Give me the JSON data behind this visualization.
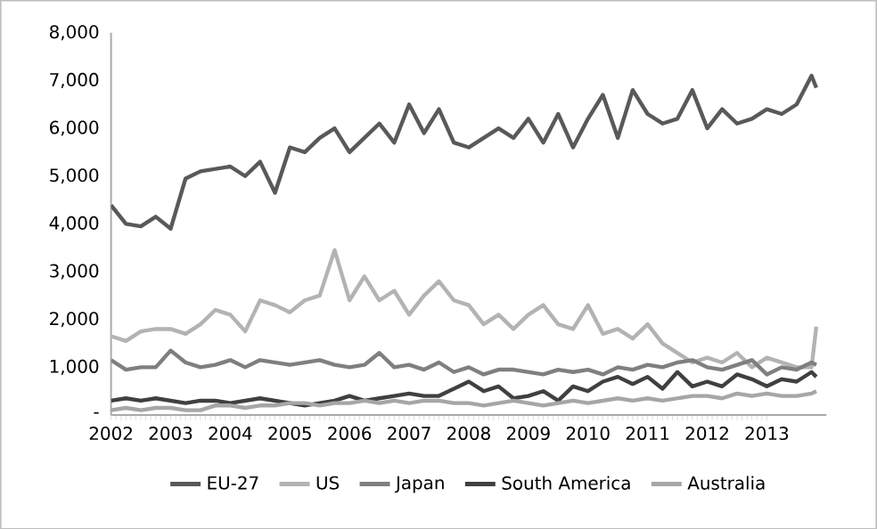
{
  "chart_data": {
    "type": "line",
    "x": [
      "2002-01",
      "2002-04",
      "2002-07",
      "2002-10",
      "2003-01",
      "2003-04",
      "2003-07",
      "2003-10",
      "2004-01",
      "2004-04",
      "2004-07",
      "2004-10",
      "2005-01",
      "2005-04",
      "2005-07",
      "2005-10",
      "2006-01",
      "2006-04",
      "2006-07",
      "2006-10",
      "2007-01",
      "2007-04",
      "2007-07",
      "2007-10",
      "2008-01",
      "2008-04",
      "2008-07",
      "2008-10",
      "2009-01",
      "2009-04",
      "2009-07",
      "2009-10",
      "2010-01",
      "2010-04",
      "2010-07",
      "2010-10",
      "2011-01",
      "2011-04",
      "2011-07",
      "2011-10",
      "2012-01",
      "2012-04",
      "2012-07",
      "2012-10",
      "2013-01",
      "2013-04",
      "2013-07",
      "2013-10",
      "2013-11"
    ],
    "series": [
      {
        "name": "EU-27",
        "color": "#595959",
        "values": [
          4390,
          4000,
          3950,
          4150,
          3900,
          4950,
          5100,
          5150,
          5200,
          5000,
          5300,
          4650,
          5600,
          5500,
          5800,
          6000,
          5500,
          5800,
          6100,
          5700,
          6500,
          5900,
          6400,
          5700,
          5600,
          5800,
          6000,
          5800,
          6200,
          5700,
          6300,
          5600,
          6200,
          6700,
          5800,
          6800,
          6300,
          6100,
          6200,
          6800,
          6000,
          6400,
          6100,
          6200,
          6400,
          6300,
          6500,
          7100,
          6850
        ]
      },
      {
        "name": "US",
        "color": "#b3b3b3",
        "values": [
          1650,
          1550,
          1750,
          1800,
          1800,
          1700,
          1900,
          2200,
          2100,
          1750,
          2400,
          2300,
          2150,
          2400,
          2500,
          3450,
          2400,
          2900,
          2400,
          2600,
          2100,
          2500,
          2800,
          2400,
          2300,
          1900,
          2100,
          1800,
          2100,
          2300,
          1900,
          1800,
          2300,
          1700,
          1800,
          1600,
          1900,
          1500,
          1300,
          1100,
          1200,
          1100,
          1300,
          1000,
          1200,
          1100,
          1000,
          1000,
          1850
        ]
      },
      {
        "name": "Japan",
        "color": "#7f7f7f",
        "values": [
          1150,
          950,
          1000,
          1000,
          1350,
          1100,
          1000,
          1050,
          1150,
          1000,
          1150,
          1100,
          1050,
          1100,
          1150,
          1050,
          1000,
          1050,
          1300,
          1000,
          1050,
          950,
          1100,
          900,
          1000,
          850,
          950,
          950,
          900,
          850,
          950,
          900,
          950,
          850,
          1000,
          950,
          1050,
          1000,
          1100,
          1150,
          1000,
          950,
          1050,
          1150,
          850,
          1000,
          950,
          1100,
          1050
        ]
      },
      {
        "name": "South America",
        "color": "#404040",
        "values": [
          300,
          350,
          300,
          350,
          300,
          250,
          300,
          300,
          250,
          300,
          350,
          300,
          250,
          200,
          250,
          300,
          400,
          300,
          350,
          400,
          450,
          400,
          400,
          550,
          700,
          500,
          600,
          350,
          400,
          500,
          300,
          600,
          500,
          700,
          800,
          650,
          800,
          550,
          900,
          600,
          700,
          600,
          850,
          750,
          600,
          750,
          700,
          900,
          800
        ]
      },
      {
        "name": "Australia",
        "color": "#a6a6a6",
        "values": [
          100,
          150,
          100,
          150,
          150,
          100,
          100,
          200,
          200,
          150,
          200,
          200,
          250,
          250,
          200,
          250,
          250,
          300,
          250,
          300,
          250,
          300,
          300,
          250,
          250,
          200,
          250,
          300,
          250,
          200,
          250,
          300,
          250,
          300,
          350,
          300,
          350,
          300,
          350,
          400,
          400,
          350,
          450,
          400,
          450,
          400,
          400,
          450,
          500
        ]
      }
    ],
    "xlim": [
      "2002-01",
      "2014-01"
    ],
    "xticks": [
      {
        "value": "2002-01",
        "label": "2002"
      },
      {
        "value": "2003-01",
        "label": "2003"
      },
      {
        "value": "2004-01",
        "label": "2004"
      },
      {
        "value": "2005-01",
        "label": "2005"
      },
      {
        "value": "2006-01",
        "label": "2006"
      },
      {
        "value": "2007-01",
        "label": "2007"
      },
      {
        "value": "2008-01",
        "label": "2008"
      },
      {
        "value": "2009-01",
        "label": "2009"
      },
      {
        "value": "2010-01",
        "label": "2010"
      },
      {
        "value": "2011-01",
        "label": "2011"
      },
      {
        "value": "2012-01",
        "label": "2012"
      },
      {
        "value": "2013-01",
        "label": "2013"
      }
    ],
    "ylim": [
      0,
      8000
    ],
    "yticks": [
      {
        "value": 0,
        "label": "-"
      },
      {
        "value": 1000,
        "label": "1,000"
      },
      {
        "value": 2000,
        "label": "2,000"
      },
      {
        "value": 3000,
        "label": "3,000"
      },
      {
        "value": 4000,
        "label": "4,000"
      },
      {
        "value": 5000,
        "label": "5,000"
      },
      {
        "value": 6000,
        "label": "6,000"
      },
      {
        "value": 7000,
        "label": "7,000"
      },
      {
        "value": 8000,
        "label": "8,000"
      }
    ],
    "grid": false,
    "legend": "bottom",
    "marker": "none",
    "line_style": "solid"
  }
}
